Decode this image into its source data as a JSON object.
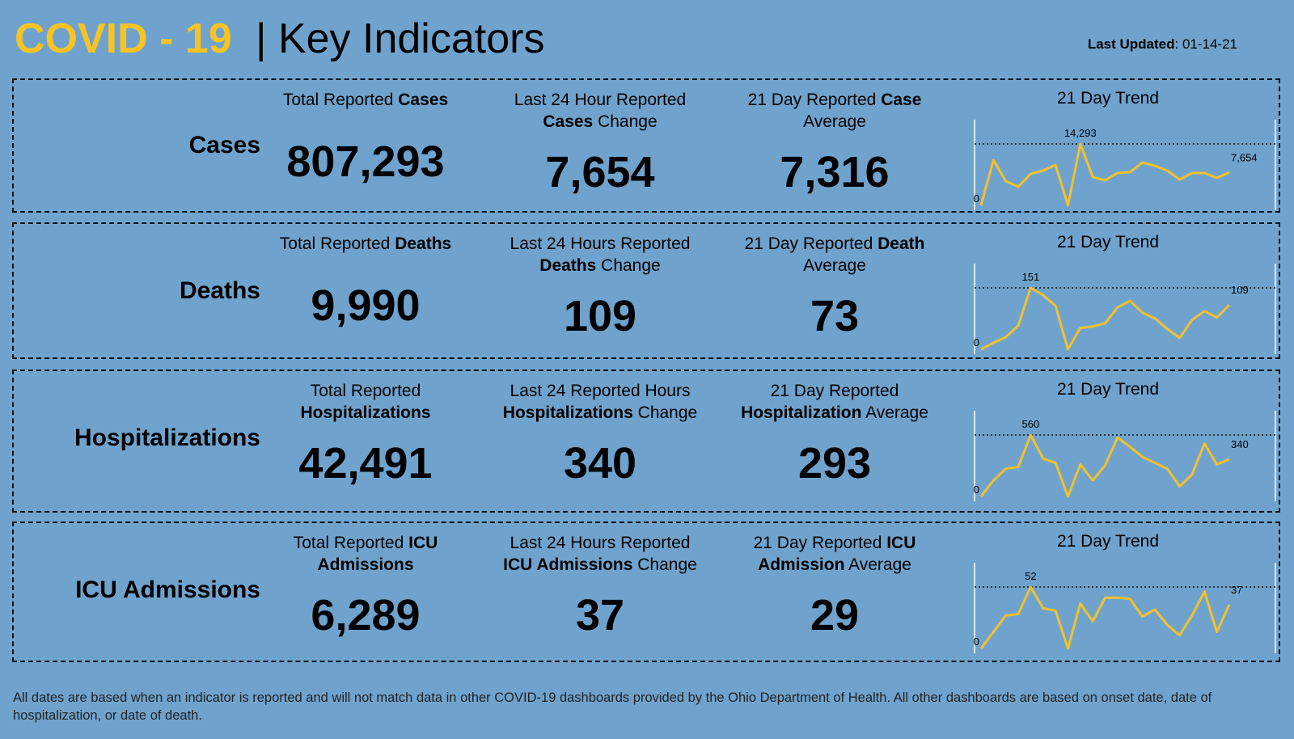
{
  "header": {
    "brand": "COVID - 19",
    "brand_color": "#f7c325",
    "title": "| Key Indicators",
    "updated_label": "Last Updated",
    "updated_value": ": 01-14-21"
  },
  "rows": [
    {
      "label": "Cases",
      "metrics": [
        {
          "lines": [
            [
              {
                "text": "Total Reported "
              },
              {
                "text": "Cases",
                "bold": true
              }
            ]
          ],
          "value": "807,293"
        },
        {
          "lines": [
            [
              {
                "text": "Last 24 Hour Reported"
              }
            ],
            [
              {
                "text": "Cases",
                "bold": true
              },
              {
                "text": " Change"
              }
            ]
          ],
          "value": "7,654"
        },
        {
          "lines": [
            [
              {
                "text": "21 Day Reported "
              },
              {
                "text": "Case",
                "bold": true
              }
            ],
            [
              {
                "text": "Average"
              }
            ]
          ],
          "value": "7,316"
        }
      ],
      "chart_data": {
        "type": "line",
        "title": "21 Day Trend",
        "color": "#f2c12e",
        "values": [
          0,
          10530,
          5640,
          4320,
          7330,
          8080,
          9400,
          0,
          14293,
          6580,
          5830,
          7520,
          7710,
          9960,
          9210,
          8080,
          6020,
          7520,
          7520,
          6390,
          7654
        ],
        "value_labels": [
          null,
          null,
          null,
          null,
          null,
          null,
          null,
          null,
          "14,293",
          null,
          null,
          null,
          null,
          null,
          null,
          null,
          null,
          null,
          null,
          null,
          "7,654"
        ],
        "ylim": [
          0,
          14293
        ],
        "yticks": [
          0
        ]
      }
    },
    {
      "label": "Deaths",
      "metrics": [
        {
          "lines": [
            [
              {
                "text": "Total Reported "
              },
              {
                "text": "Deaths",
                "bold": true
              }
            ]
          ],
          "value": "9,990"
        },
        {
          "lines": [
            [
              {
                "text": "Last 24 Hours Reported"
              }
            ],
            [
              {
                "text": "Deaths",
                "bold": true
              },
              {
                "text": " Change"
              }
            ]
          ],
          "value": "109"
        },
        {
          "lines": [
            [
              {
                "text": "21 Day Reported "
              },
              {
                "text": "Death",
                "bold": true
              }
            ],
            [
              {
                "text": "Average"
              }
            ]
          ],
          "value": "73"
        }
      ],
      "chart_data": {
        "type": "line",
        "title": "21 Day Trend",
        "color": "#f2c12e",
        "values": [
          0,
          16,
          30,
          58,
          151,
          133,
          107,
          0,
          52,
          56,
          64,
          103,
          119,
          90,
          76,
          50,
          28,
          72,
          94,
          78,
          109
        ],
        "value_labels": [
          null,
          null,
          null,
          null,
          "151",
          null,
          null,
          null,
          null,
          null,
          null,
          null,
          null,
          null,
          null,
          null,
          null,
          null,
          null,
          null,
          "109"
        ],
        "ylim": [
          0,
          151
        ],
        "yticks": [
          0
        ]
      }
    },
    {
      "label": "Hospitalizations",
      "metrics": [
        {
          "lines": [
            [
              {
                "text": "Total Reported"
              }
            ],
            [
              {
                "text": "Hospitalizations",
                "bold": true
              }
            ]
          ],
          "value": "42,491"
        },
        {
          "lines": [
            [
              {
                "text": "Last 24 Reported Hours"
              }
            ],
            [
              {
                "text": "Hospitalizations",
                "bold": true
              },
              {
                "text": " Change"
              }
            ]
          ],
          "value": "340"
        },
        {
          "lines": [
            [
              {
                "text": "21 Day Reported"
              }
            ],
            [
              {
                "text": "Hospitalization",
                "bold": true
              },
              {
                "text": " Average"
              }
            ]
          ],
          "value": "293"
        }
      ],
      "chart_data": {
        "type": "line",
        "title": "21 Day Trend",
        "color": "#f2c12e",
        "values": [
          0,
          146,
          253,
          268,
          560,
          345,
          307,
          0,
          291,
          146,
          284,
          537,
          452,
          360,
          307,
          253,
          92,
          199,
          483,
          291,
          340
        ],
        "value_labels": [
          null,
          null,
          null,
          null,
          "560",
          null,
          null,
          null,
          null,
          null,
          null,
          null,
          null,
          null,
          null,
          null,
          null,
          null,
          null,
          null,
          "340"
        ],
        "ylim": [
          0,
          560
        ],
        "yticks": [
          0
        ]
      }
    },
    {
      "label": "ICU Admissions",
      "metrics": [
        {
          "lines": [
            [
              {
                "text": "Total Reported "
              },
              {
                "text": "ICU",
                "bold": true
              }
            ],
            [
              {
                "text": "Admissions",
                "bold": true
              }
            ]
          ],
          "value": "6,289"
        },
        {
          "lines": [
            [
              {
                "text": "Last 24 Hours Reported"
              }
            ],
            [
              {
                "text": "ICU Admissions",
                "bold": true
              },
              {
                "text": " Change"
              }
            ]
          ],
          "value": "37"
        },
        {
          "lines": [
            [
              {
                "text": "21 Day Reported "
              },
              {
                "text": "ICU",
                "bold": true
              }
            ],
            [
              {
                "text": "Admission",
                "bold": true
              },
              {
                "text": " Average"
              }
            ]
          ],
          "value": "29"
        }
      ],
      "chart_data": {
        "type": "line",
        "title": "21 Day Trend",
        "color": "#f2c12e",
        "values": [
          0,
          14,
          28,
          29,
          52,
          34,
          32,
          0,
          38,
          23,
          43,
          43,
          42,
          27,
          33,
          20,
          11,
          28,
          48,
          14,
          37
        ],
        "value_labels": [
          null,
          null,
          null,
          null,
          "52",
          null,
          null,
          null,
          null,
          null,
          null,
          null,
          null,
          null,
          null,
          null,
          null,
          null,
          null,
          null,
          "37"
        ],
        "ylim": [
          0,
          52
        ],
        "yticks": [
          0
        ]
      }
    }
  ],
  "footnote": "All dates are based when an indicator is reported and will not match data in other COVID-19 dashboards provided by the Ohio Department of Health. All other dashboards are based on onset date, date of hospitalization, or date of death."
}
